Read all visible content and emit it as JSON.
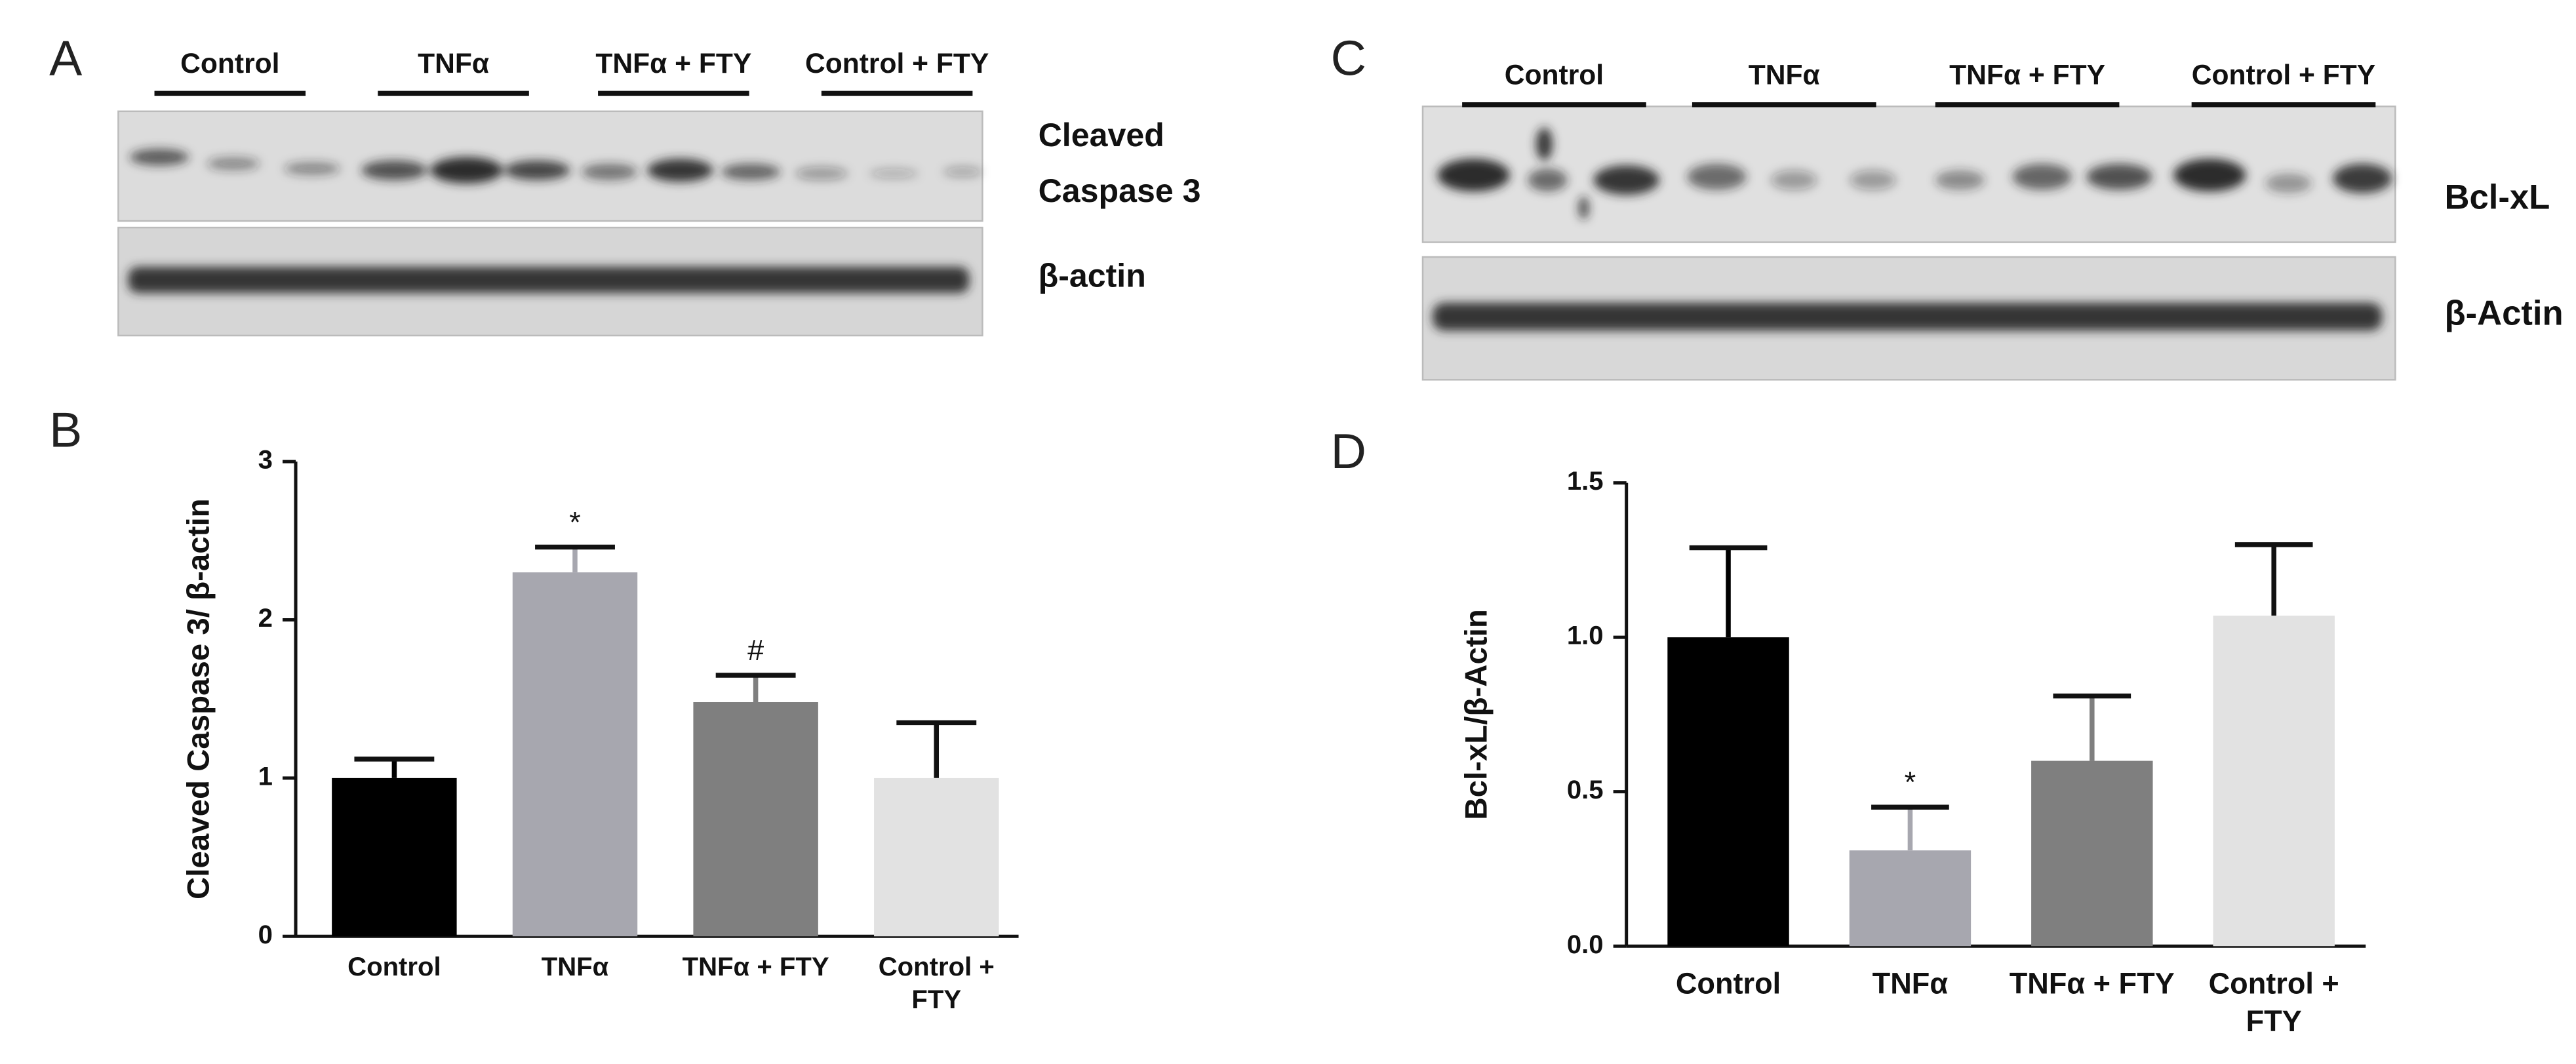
{
  "blots": [
    {
      "panel": "A",
      "groups": [
        "Control",
        "TNFα",
        "TNFα + FTY",
        "Control + FTY"
      ],
      "rows": [
        [
          "Cleaved",
          "Caspase 3"
        ],
        [
          "β-actin"
        ]
      ]
    },
    {
      "panel": "C",
      "groups": [
        "Control",
        "TNFα",
        "TNFα + FTY",
        "Control + FTY"
      ],
      "rows": [
        [
          "Bcl-xL"
        ],
        [
          "β-Actin"
        ]
      ]
    }
  ],
  "chart_data": [
    {
      "type": "bar",
      "panel": "B",
      "ylabel": "Cleaved Caspase 3/ β-actin",
      "categories": [
        "Control",
        "TNFα",
        "TNFα + FTY",
        "Control + FTY"
      ],
      "values": [
        1.0,
        2.3,
        1.48,
        1.0
      ],
      "errors": [
        0.12,
        0.16,
        0.17,
        0.35
      ],
      "colors": [
        "#000000",
        "#a7a7af",
        "#7f7f7f",
        "#e2e2e2"
      ],
      "annotations": [
        null,
        "*",
        "#",
        null
      ],
      "ylim": [
        0,
        3
      ],
      "yticks": [
        0,
        1,
        2,
        3
      ]
    },
    {
      "type": "bar",
      "panel": "D",
      "ylabel": "Bcl-xL/β-Actin",
      "categories": [
        "Control",
        "TNFα",
        "TNFα + FTY",
        "Control + FTY"
      ],
      "values": [
        1.0,
        0.31,
        0.6,
        1.07
      ],
      "errors": [
        0.29,
        0.14,
        0.21,
        0.23
      ],
      "colors": [
        "#000000",
        "#a7a7af",
        "#7f7f7f",
        "#e2e2e2"
      ],
      "annotations": [
        null,
        "*",
        null,
        null
      ],
      "ylim": [
        0,
        1.5
      ],
      "yticks": [
        {
          "value": 0,
          "label": "0.0"
        },
        {
          "value": 0.5,
          "label": "0.5"
        },
        {
          "value": 1,
          "label": "1.0"
        },
        {
          "value": 1.5,
          "label": "1.5"
        }
      ]
    }
  ]
}
